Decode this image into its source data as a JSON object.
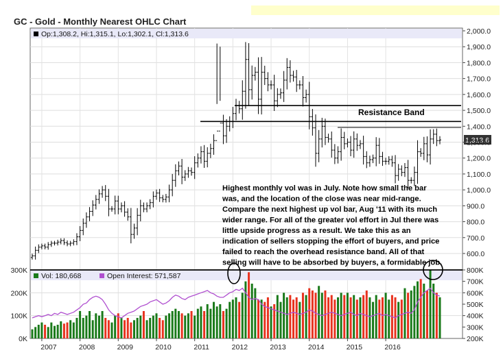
{
  "header": {
    "title": "GC - Gold - Monthly Nearest OHLC Chart"
  },
  "price_panel": {
    "legend": "Op:1,308.2, Hi:1,315.1, Lo:1,302.1, Cl:1,313.6",
    "last_price_label": "1,313.6",
    "resistance_label": "Resistance Band",
    "note_lines": [
      "Highest monthly vol was in July.  Note how small the bar",
      "was, and the location of the close was near mid-range.",
      "Compare the next highest up vol bar, Aug '11 with its much",
      "wider range.  For all of the greater vol effort in Jul there was",
      "little upside progress as a result.  We take this as an",
      "indication of sellers stopping the effort of buyers, and price",
      "failed to reach the overhead resistance band.  All of that",
      "selling will have to be absorbed by buyers, a formidable job."
    ]
  },
  "volume_panel": {
    "vol_legend": "Vol: 180,668",
    "oi_legend": "Open Interest: 571,587"
  },
  "colors": {
    "up": "#1a7a1a",
    "down": "#e8321e",
    "oi": "#b050d0",
    "price": "#000000"
  },
  "chart_data": [
    {
      "type": "ohlc",
      "title": "GC - Gold - Monthly Nearest OHLC Chart",
      "x_ticks": [
        "2007",
        "2008",
        "2009",
        "2010",
        "2011",
        "2012",
        "2013",
        "2014",
        "2015",
        "2016"
      ],
      "y_ticks": [
        "600.0",
        "700.0",
        "800.0",
        "900.0",
        "1,000.0",
        "1,100.0",
        "1,200.0",
        "1,300.0",
        "1,400.0",
        "1,500.0",
        "1,600.0",
        "1,700.0",
        "1,800.0",
        "1,900.0",
        "2,000.0"
      ],
      "ylim": [
        540,
        2000
      ],
      "x_start": "2006-10",
      "monthly_close": [
        585,
        620,
        640,
        648,
        640,
        656,
        665,
        665,
        672,
        681,
        668,
        660,
        665,
        675,
        705,
        745,
        790,
        830,
        865,
        905,
        940,
        975,
        1000,
        960,
        880,
        880,
        930,
        880,
        900,
        860,
        830,
        720,
        760,
        840,
        900,
        880,
        900,
        920,
        960,
        980,
        950,
        940,
        955,
        1000,
        1060,
        1120,
        1150,
        1080,
        1100,
        1120,
        1110,
        1170,
        1200,
        1240,
        1180,
        1230,
        1260,
        1310,
        1370,
        1420,
        1340,
        1400,
        1430,
        1480,
        1530,
        1510,
        1620,
        1820,
        1630,
        1720,
        1740,
        1570,
        1740,
        1700,
        1660,
        1660,
        1560,
        1600,
        1610,
        1690,
        1770,
        1720,
        1710,
        1660,
        1660,
        1580,
        1600,
        1460,
        1390,
        1230,
        1320,
        1400,
        1330,
        1320,
        1250,
        1200,
        1240,
        1330,
        1290,
        1300,
        1250,
        1320,
        1280,
        1290,
        1210,
        1170,
        1190,
        1200,
        1280,
        1210,
        1180,
        1180,
        1190,
        1170,
        1090,
        1130,
        1110,
        1140,
        1060,
        1060,
        1110,
        1240,
        1230,
        1290,
        1220,
        1320,
        1350,
        1310,
        1314
      ],
      "resistance_band": [
        1430,
        1530
      ]
    },
    {
      "type": "bar",
      "title": "Volume / Open Interest",
      "y_ticks_left": [
        "0K",
        "100K",
        "200K",
        "300K"
      ],
      "y_ticks_right": [
        "200K",
        "300K",
        "400K",
        "500K",
        "600K",
        "700K",
        "800K"
      ],
      "ylim_left": [
        0,
        300000
      ],
      "ylim_right": [
        200000,
        800000
      ],
      "volume_k": [
        40,
        50,
        60,
        70,
        60,
        50,
        70,
        55,
        60,
        75,
        65,
        70,
        80,
        70,
        90,
        120,
        90,
        100,
        120,
        80,
        110,
        100,
        120,
        90,
        80,
        70,
        100,
        110,
        90,
        80,
        90,
        70,
        80,
        90,
        100,
        120,
        80,
        90,
        100,
        110,
        90,
        80,
        100,
        110,
        120,
        130,
        120,
        110,
        100,
        110,
        120,
        100,
        130,
        140,
        120,
        150,
        130,
        160,
        140,
        150,
        120,
        130,
        160,
        170,
        180,
        160,
        200,
        250,
        290,
        240,
        220,
        170,
        170,
        160,
        180,
        140,
        150,
        190,
        160,
        200,
        180,
        190,
        170,
        180,
        160,
        200,
        190,
        220,
        210,
        200,
        230,
        200,
        210,
        180,
        190,
        170,
        180,
        200,
        190,
        200,
        180,
        190,
        170,
        180,
        190,
        210,
        180,
        160,
        190,
        170,
        180,
        200,
        170,
        190,
        180,
        160,
        170,
        220,
        200,
        210,
        230,
        250,
        260,
        240,
        210,
        300,
        240,
        200,
        180
      ],
      "open_interest_k": [
        380,
        390,
        400,
        390,
        400,
        410,
        400,
        420,
        410,
        430,
        420,
        410,
        420,
        430,
        450,
        470,
        500,
        510,
        540,
        560,
        570,
        560,
        540,
        500,
        450,
        420,
        400,
        390,
        380,
        400,
        420,
        430,
        440,
        460,
        480,
        490,
        500,
        520,
        530,
        540,
        520,
        500,
        510,
        530,
        560,
        580,
        570,
        550,
        540,
        560,
        570,
        580,
        590,
        600,
        610,
        620,
        600,
        590,
        570,
        560,
        560,
        580,
        600,
        610,
        630,
        620,
        640,
        600,
        560,
        540,
        550,
        540,
        500,
        480,
        470,
        460,
        450,
        440,
        430,
        420,
        410,
        420,
        430,
        420,
        410,
        420,
        430,
        450,
        440,
        420,
        410,
        400,
        410,
        420,
        430,
        420,
        410,
        400,
        410,
        420,
        430,
        410,
        400,
        420,
        410,
        400,
        390,
        400,
        410,
        420,
        400,
        410,
        400,
        390,
        380,
        400,
        410,
        420,
        430,
        420,
        450,
        520,
        560,
        600,
        620,
        640,
        600,
        580,
        571
      ]
    }
  ]
}
